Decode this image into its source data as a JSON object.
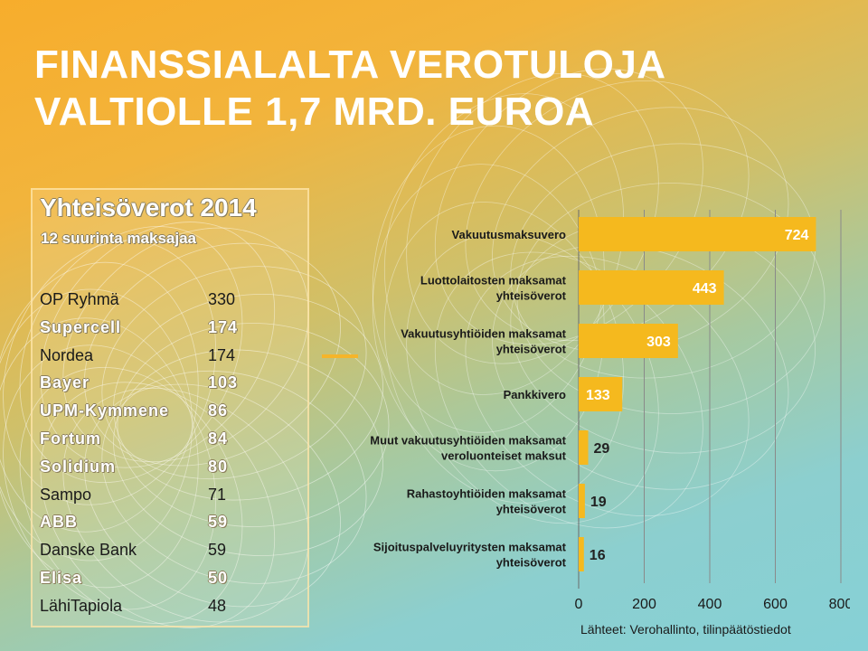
{
  "title": {
    "line1": "FINANSSIALALTA VEROTULOJA",
    "line2": "VALTIOLLE 1,7 MRD. EUROA"
  },
  "taxpayers": {
    "title": "Yhteisöverot 2014",
    "subtitle": "12 suurinta maksajaa",
    "rows": [
      {
        "name": "OP Ryhmä",
        "value": "330",
        "style": "dark"
      },
      {
        "name": "Supercell",
        "value": "174",
        "style": "light"
      },
      {
        "name": "Nordea",
        "value": "174",
        "style": "dark"
      },
      {
        "name": "Bayer",
        "value": "103",
        "style": "light"
      },
      {
        "name": "UPM-Kymmene",
        "value": "86",
        "style": "light"
      },
      {
        "name": "Fortum",
        "value": "84",
        "style": "light"
      },
      {
        "name": "Solidium",
        "value": "80",
        "style": "light"
      },
      {
        "name": "Sampo",
        "value": "71",
        "style": "dark"
      },
      {
        "name": "ABB",
        "value": "59",
        "style": "light"
      },
      {
        "name": "Danske Bank",
        "value": "59",
        "style": "dark"
      },
      {
        "name": "Elisa",
        "value": "50",
        "style": "light"
      },
      {
        "name": "LähiTapiola",
        "value": "48",
        "style": "dark"
      }
    ]
  },
  "chart_data": {
    "type": "bar",
    "orientation": "horizontal",
    "categories": [
      [
        "Vakuutusmaksuvero"
      ],
      [
        "Luottolaitosten maksamat",
        "yhteisöverot"
      ],
      [
        "Vakuutusyhtiöiden maksamat",
        "yhteisöverot"
      ],
      [
        "Pankkivero"
      ],
      [
        "Muut vakuutusyhtiöiden maksamat",
        "veroluonteiset maksut"
      ],
      [
        "Rahastoyhtiöiden maksamat",
        "yhteisöverot"
      ],
      [
        "Sijoituspalveluyritysten maksamat",
        "yhteisöverot"
      ]
    ],
    "values": [
      724,
      443,
      303,
      133,
      29,
      19,
      16
    ],
    "xlim": [
      0,
      800
    ],
    "xticks": [
      0,
      200,
      400,
      600,
      800
    ],
    "grid": true,
    "bar_color": "#f5b91e",
    "label_inside_color": "#ffffff",
    "label_outside_color": "#222222"
  },
  "source": "Lähteet: Verohallinto, tilinpäätöstiedot"
}
